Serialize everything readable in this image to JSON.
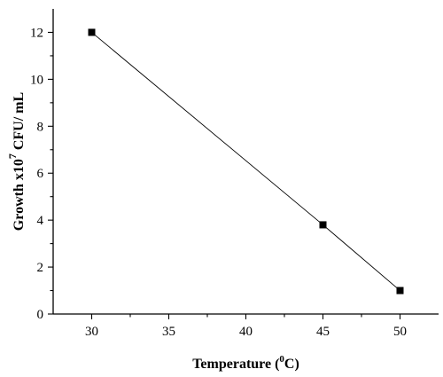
{
  "chart_data": {
    "type": "line",
    "title": "",
    "xlabel": {
      "prefix": "Temperature (",
      "sup": "0",
      "suffix": "C)"
    },
    "ylabel": {
      "prefix": "Growth  x10",
      "sup": "7",
      "suffix": " CFU/ mL"
    },
    "xlim": [
      27.5,
      52.5
    ],
    "ylim": [
      0,
      13
    ],
    "x_ticks": [
      30,
      35,
      40,
      45,
      50
    ],
    "y_ticks": [
      0,
      2,
      4,
      6,
      8,
      10,
      12
    ],
    "grid": false,
    "series": [
      {
        "x": [
          30,
          45,
          50
        ],
        "y": [
          12,
          3.8,
          1
        ],
        "marker": "square",
        "color": "#000000"
      }
    ]
  }
}
